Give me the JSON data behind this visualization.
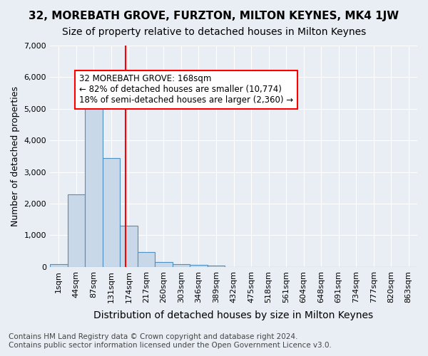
{
  "title": "32, MOREBATH GROVE, FURZTON, MILTON KEYNES, MK4 1JW",
  "subtitle": "Size of property relative to detached houses in Milton Keynes",
  "xlabel": "Distribution of detached houses by size in Milton Keynes",
  "ylabel": "Number of detached properties",
  "footer_line1": "Contains HM Land Registry data © Crown copyright and database right 2024.",
  "footer_line2": "Contains public sector information licensed under the Open Government Licence v3.0.",
  "bin_labels": [
    "1sqm",
    "44sqm",
    "87sqm",
    "131sqm",
    "174sqm",
    "217sqm",
    "260sqm",
    "303sqm",
    "346sqm",
    "389sqm",
    "432sqm",
    "475sqm",
    "518sqm",
    "561sqm",
    "604sqm",
    "648sqm",
    "691sqm",
    "734sqm",
    "777sqm",
    "820sqm",
    "863sqm"
  ],
  "bar_values": [
    80,
    2300,
    5480,
    3450,
    1310,
    470,
    160,
    95,
    60,
    50,
    0,
    0,
    0,
    0,
    0,
    0,
    0,
    0,
    0,
    0,
    0
  ],
  "bar_color": "#c8d8e8",
  "bar_edge_color": "#5090c0",
  "red_line_x": 3.82,
  "annotation_text": "32 MOREBATH GROVE: 168sqm\n← 82% of detached houses are smaller (10,774)\n18% of semi-detached houses are larger (2,360) →",
  "annotation_box_color": "white",
  "annotation_box_edge_color": "red",
  "red_line_color": "red",
  "ylim": [
    0,
    7000
  ],
  "yticks": [
    0,
    1000,
    2000,
    3000,
    4000,
    5000,
    6000,
    7000
  ],
  "background_color": "#e8eef4",
  "grid_color": "white",
  "title_fontsize": 11,
  "subtitle_fontsize": 10,
  "xlabel_fontsize": 10,
  "ylabel_fontsize": 9,
  "tick_fontsize": 8,
  "annotation_fontsize": 8.5,
  "footer_fontsize": 7.5
}
